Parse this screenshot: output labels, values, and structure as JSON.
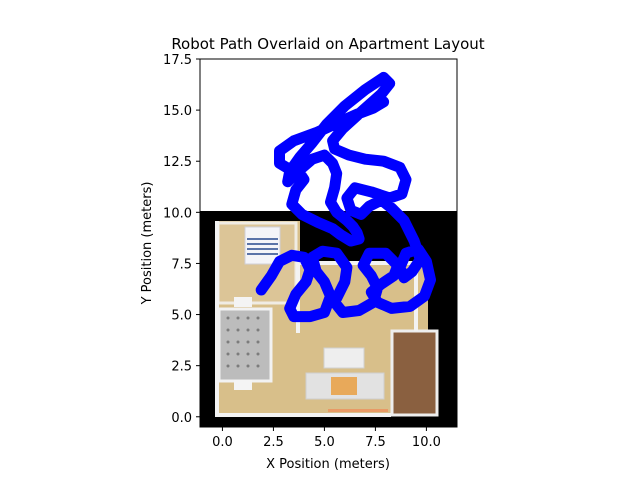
{
  "chart_data": {
    "type": "line",
    "title": "Robot Path Overlaid on Apartment Layout",
    "xlabel": "X Position (meters)",
    "ylabel": "Y Position (meters)",
    "xlim": [
      -1.1,
      11.5
    ],
    "ylim": [
      -0.5,
      17.5
    ],
    "xticks": [
      "0.0",
      "2.5",
      "5.0",
      "7.5",
      "10.0"
    ],
    "xtick_values": [
      0,
      2.5,
      5,
      7.5,
      10
    ],
    "yticks": [
      "0.0",
      "2.5",
      "5.0",
      "7.5",
      "10.0",
      "12.5",
      "15.0",
      "17.5"
    ],
    "ytick_values": [
      0,
      2.5,
      5,
      7.5,
      10,
      12.5,
      15,
      17.5
    ],
    "background_image": {
      "description_key": "floor-plan",
      "extent_x": [
        -1.1,
        11.5
      ],
      "extent_y": [
        -0.5,
        10.0
      ],
      "floor_extent_x": [
        0.0,
        10.6
      ],
      "floor_extent_y": [
        0.0,
        9.6
      ]
    },
    "series": [
      {
        "name": "Robot path",
        "color": "#0000ff",
        "x": [
          1.9,
          2.4,
          2.8,
          3.4,
          4.0,
          4.3,
          4.1,
          3.6,
          3.3,
          3.5,
          4.3,
          5.0,
          5.3,
          5.0,
          4.6,
          4.4,
          4.9,
          5.6,
          6.1,
          6.0,
          5.8,
          5.5,
          5.9,
          6.7,
          7.4,
          7.6,
          7.3,
          6.9,
          7.2,
          8.0,
          8.6,
          8.4,
          7.8,
          7.3,
          7.6,
          8.3,
          9.2,
          9.9,
          10.2,
          10.0,
          9.6,
          9.0,
          8.7,
          8.9,
          9.3,
          9.7,
          9.4,
          8.9,
          8.3,
          7.8,
          7.2,
          6.8,
          6.3,
          6.1,
          6.5,
          7.3,
          8.2,
          8.8,
          9.0,
          8.7,
          7.9,
          7.0,
          6.2,
          5.5,
          5.4,
          5.9,
          6.9,
          7.8,
          8.2,
          7.9,
          7.0,
          6.0,
          5.1,
          4.4,
          3.8,
          3.3,
          3.2,
          3.7,
          4.4,
          5.0,
          5.4,
          5.6,
          5.5,
          5.3,
          5.6,
          6.1,
          6.4,
          6.6,
          6.7,
          6.3,
          5.8,
          5.4,
          4.7,
          3.9,
          3.4,
          3.6,
          4.0,
          3.8,
          3.3,
          2.8,
          2.8,
          3.5,
          4.6,
          5.7,
          6.6,
          7.4,
          7.9
        ],
        "y": [
          6.2,
          6.9,
          7.6,
          7.9,
          7.8,
          7.2,
          6.6,
          6.0,
          5.3,
          4.9,
          4.9,
          5.1,
          5.9,
          6.6,
          7.1,
          7.8,
          8.1,
          8.0,
          7.3,
          6.6,
          6.2,
          5.6,
          5.1,
          5.2,
          5.6,
          6.3,
          6.9,
          7.4,
          8.0,
          8.0,
          7.4,
          6.9,
          6.5,
          6.1,
          5.6,
          5.3,
          5.4,
          5.9,
          6.7,
          7.6,
          8.2,
          8.0,
          7.3,
          6.8,
          7.1,
          7.7,
          8.6,
          9.6,
          10.2,
          10.6,
          10.3,
          9.9,
          10.1,
          10.7,
          11.2,
          11.0,
          10.7,
          10.9,
          11.6,
          12.2,
          12.5,
          12.6,
          12.8,
          13.1,
          13.5,
          14.1,
          15.0,
          15.8,
          16.3,
          16.6,
          16.0,
          15.2,
          14.3,
          13.4,
          12.7,
          12.0,
          11.5,
          12.0,
          12.6,
          12.8,
          12.4,
          11.9,
          11.2,
          10.5,
          10.0,
          9.6,
          9.3,
          9.0,
          8.7,
          8.6,
          8.9,
          9.2,
          9.5,
          9.9,
          10.4,
          11.1,
          11.6,
          11.9,
          12.1,
          12.4,
          13.0,
          13.5,
          13.9,
          14.4,
          14.8,
          15.1,
          15.4
        ]
      }
    ]
  }
}
